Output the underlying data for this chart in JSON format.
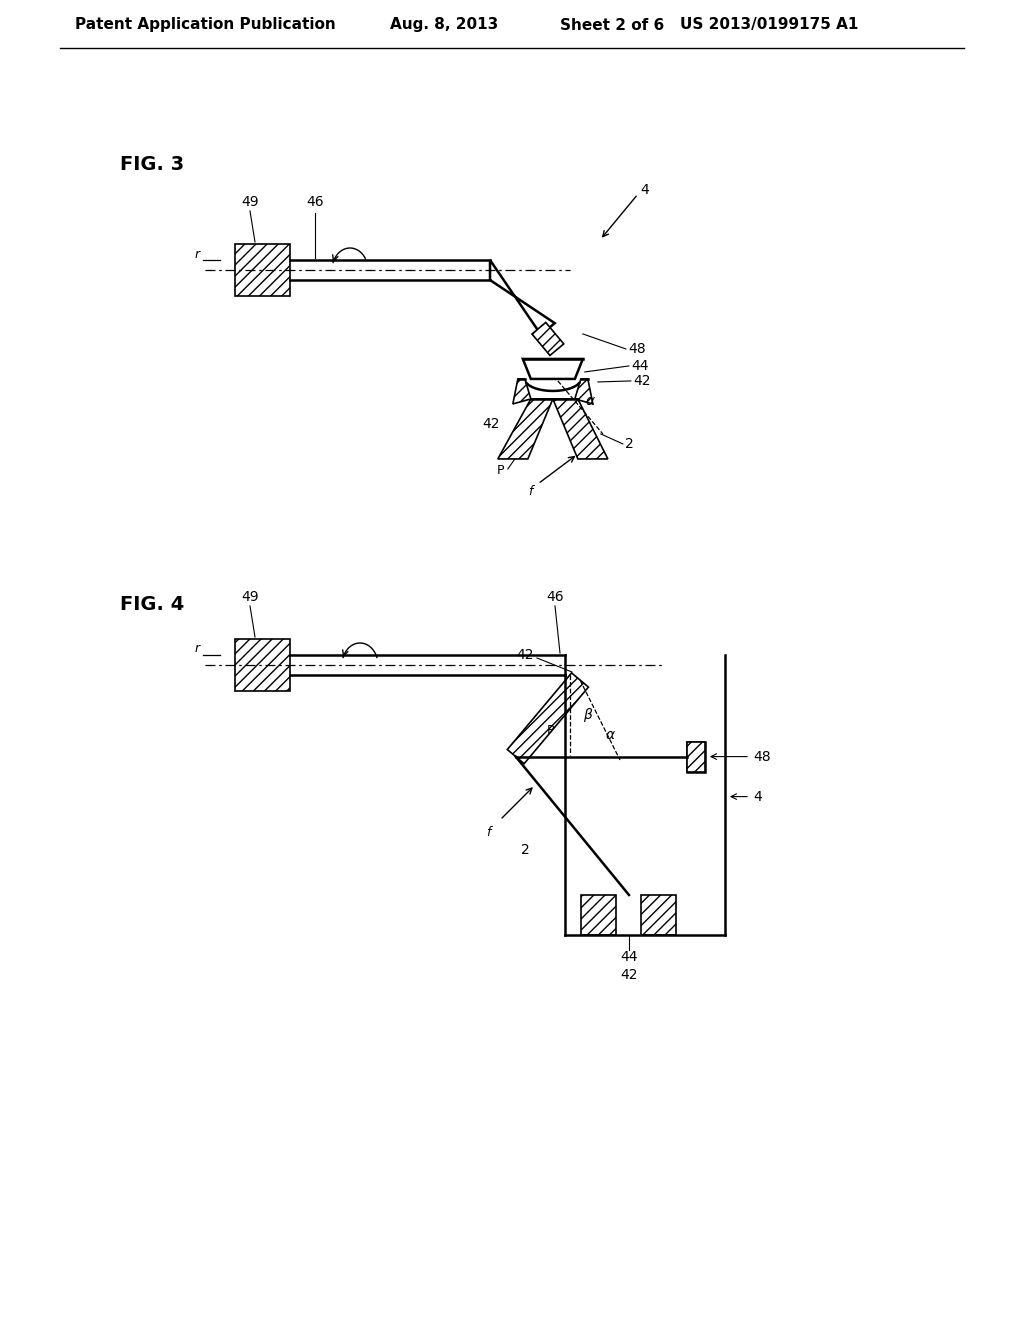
{
  "bg_color": "#ffffff",
  "header_text": "Patent Application Publication",
  "header_date": "Aug. 8, 2013",
  "header_sheet": "Sheet 2 of 6",
  "header_patent": "US 2013/0199175 A1",
  "fig3_label": "FIG. 3",
  "fig4_label": "FIG. 4",
  "line_color": "#000000",
  "font_size_header": 11,
  "font_size_label": 14,
  "font_size_ref": 10
}
